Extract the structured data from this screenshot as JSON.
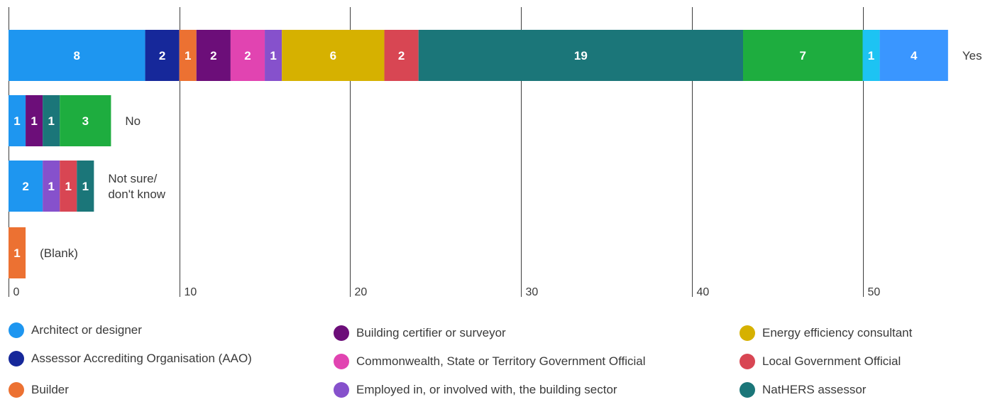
{
  "chart_data": {
    "type": "bar",
    "orientation": "horizontal",
    "stacked": true,
    "xlim": [
      0,
      55
    ],
    "ticks": [
      0,
      10,
      20,
      30,
      40,
      50
    ],
    "grid": true,
    "legend_position": "bottom",
    "categories": [
      "Yes",
      "No",
      "Not sure/\ndon't know",
      "(Blank)"
    ],
    "series": [
      {
        "name": "Architect or designer",
        "color": "#1e96f0",
        "values": [
          8,
          1,
          2,
          0
        ]
      },
      {
        "name": "Assessor Accrediting Organisation (AAO)",
        "color": "#16289a",
        "values": [
          2,
          0,
          0,
          0
        ]
      },
      {
        "name": "Builder",
        "color": "#ec7132",
        "values": [
          1,
          0,
          0,
          1
        ]
      },
      {
        "name": "Building certifier or surveyor",
        "color": "#6c0e79",
        "values": [
          2,
          1,
          0,
          0
        ]
      },
      {
        "name": "Commonwealth, State or Territory Government Official",
        "color": "#e144b1",
        "values": [
          2,
          0,
          0,
          0
        ]
      },
      {
        "name": "Employed in, or involved with, the building sector",
        "color": "#8651cc",
        "values": [
          1,
          0,
          1,
          0
        ]
      },
      {
        "name": "Energy efficiency consultant",
        "color": "#d6b100",
        "values": [
          6,
          0,
          0,
          0
        ]
      },
      {
        "name": "Local Government Official",
        "color": "#d84653",
        "values": [
          2,
          0,
          1,
          0
        ]
      },
      {
        "name": "NatHERS assessor",
        "color": "#1b7679",
        "values": [
          19,
          1,
          1,
          0
        ]
      },
      {
        "name": "",
        "color": "#1ead3f",
        "values": [
          7,
          3,
          0,
          0
        ]
      },
      {
        "name": "",
        "color": "#1dc3f3",
        "values": [
          1,
          0,
          0,
          0
        ]
      },
      {
        "name": "",
        "color": "#3a96ff",
        "values": [
          4,
          0,
          0,
          0
        ]
      }
    ],
    "legend_entries": [
      "Architect or designer",
      "Assessor Accrediting Organisation (AAO)",
      "Builder",
      "Building certifier or surveyor",
      "Commonwealth, State or Territory Government Official",
      "Employed in, or involved with, the building sector",
      "Energy efficiency consultant",
      "Local Government Official",
      "NatHERS assessor"
    ]
  }
}
